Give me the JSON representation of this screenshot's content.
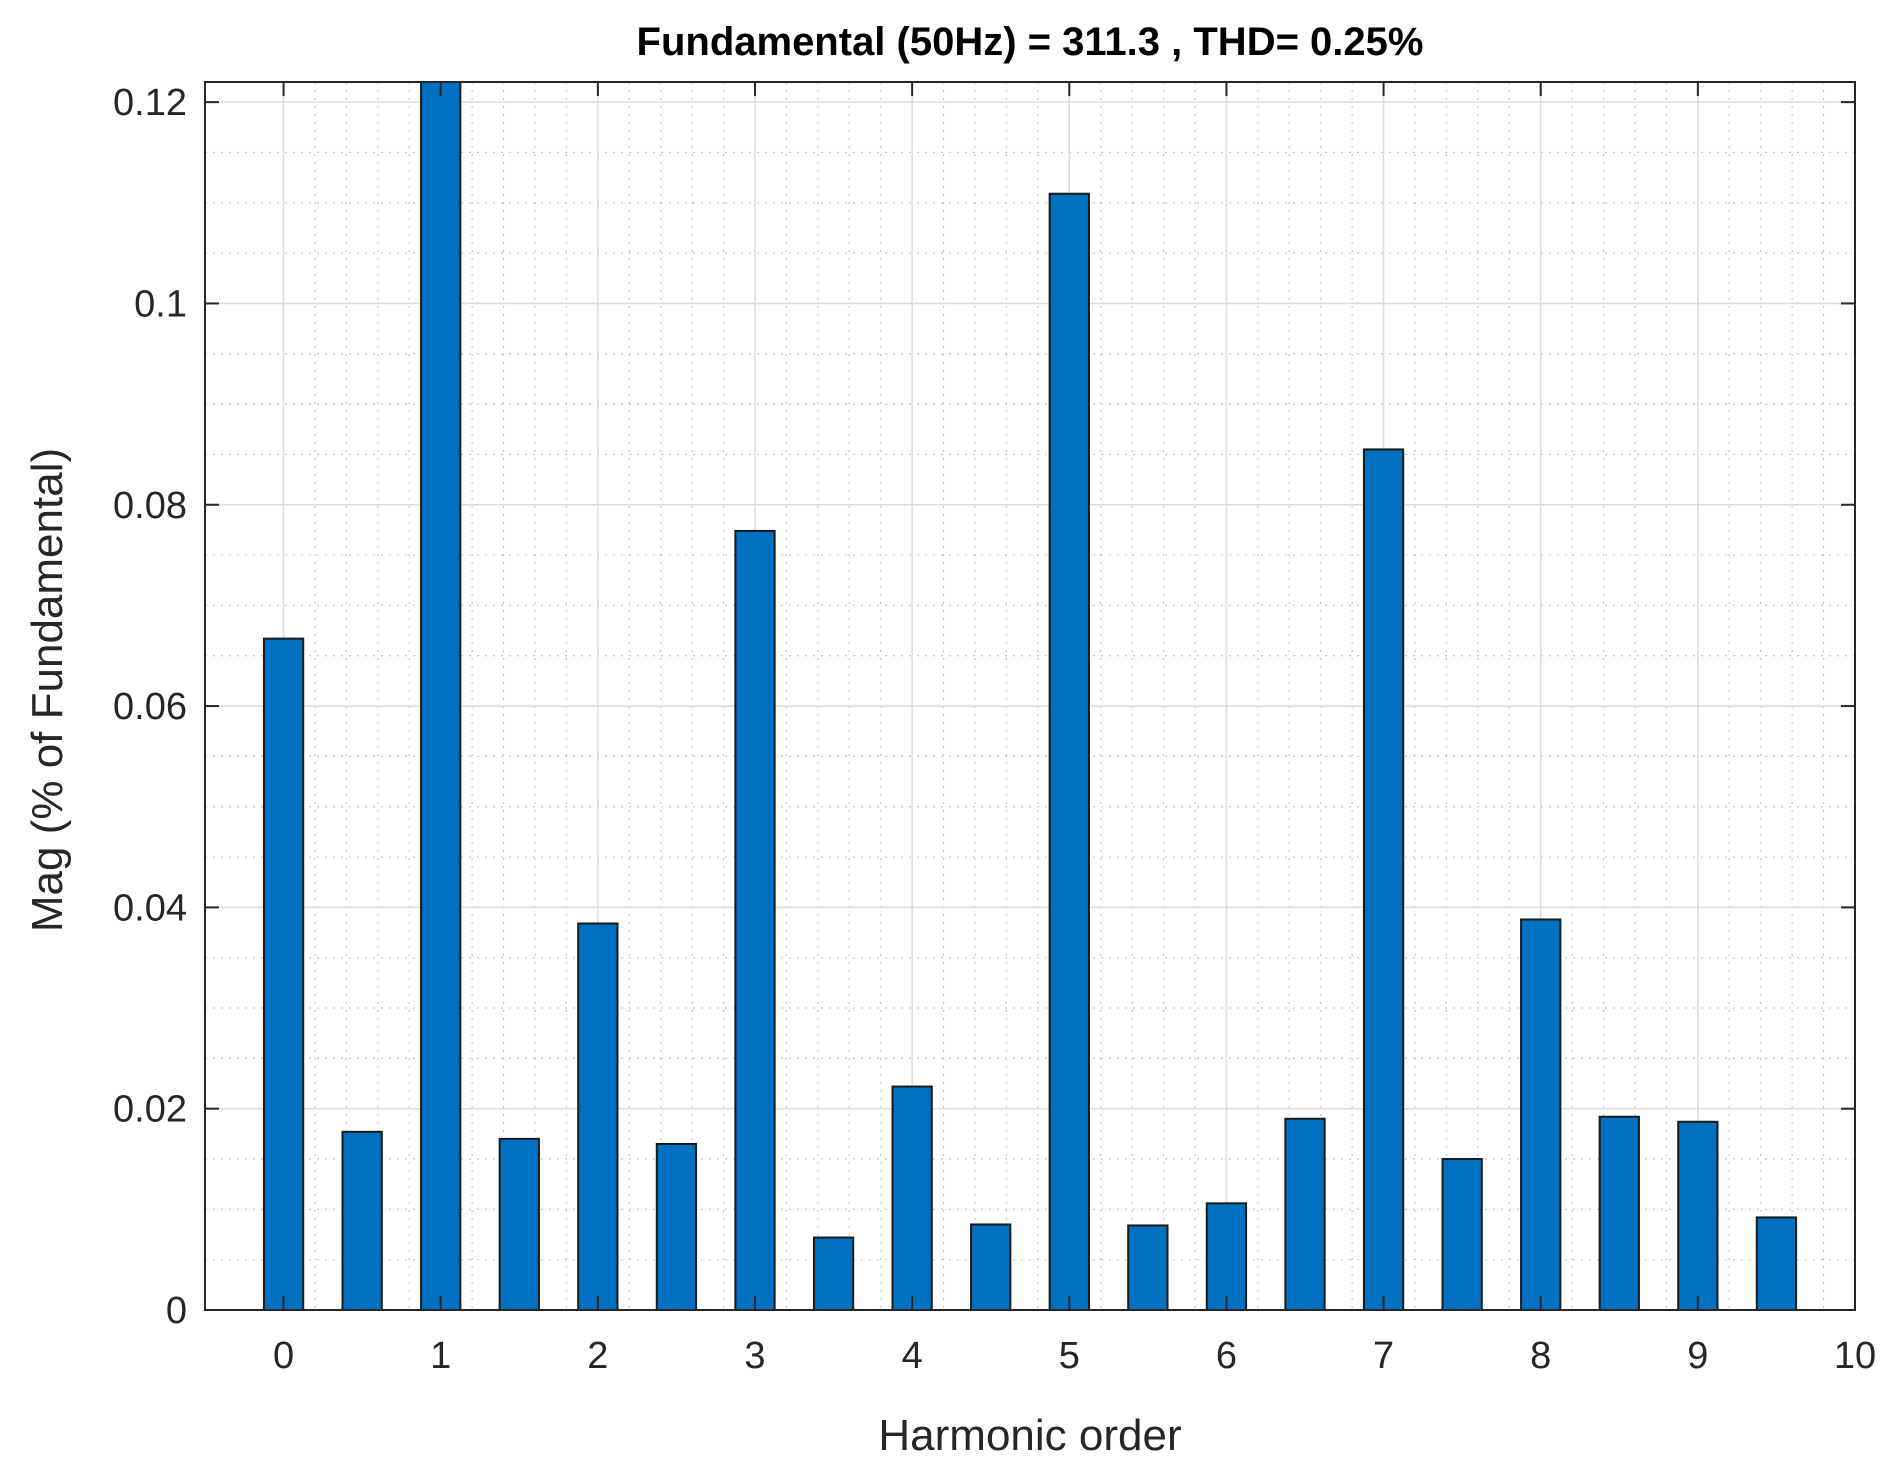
{
  "chart_data": {
    "type": "bar",
    "title": "Fundamental (50Hz) = 311.3 , THD= 0.25%",
    "xlabel": "Harmonic order",
    "ylabel": "Mag (% of Fundamental)",
    "xlim": [
      -0.5,
      10
    ],
    "ylim": [
      0,
      0.122
    ],
    "xticks": [
      0,
      1,
      2,
      3,
      4,
      5,
      6,
      7,
      8,
      9,
      10
    ],
    "xtick_labels": [
      "0",
      "1",
      "2",
      "3",
      "4",
      "5",
      "6",
      "7",
      "8",
      "9",
      "10"
    ],
    "yticks": [
      0,
      0.02,
      0.04,
      0.06,
      0.08,
      0.1,
      0.12
    ],
    "ytick_labels": [
      "0",
      "0.02",
      "0.04",
      "0.06",
      "0.08",
      "0.1",
      "0.12"
    ],
    "grid": true,
    "minor_grid": true,
    "bar_color": "#0070c0",
    "x": [
      0,
      0.5,
      1,
      1.5,
      2,
      2.5,
      3,
      3.5,
      4,
      4.5,
      5,
      5.5,
      6,
      6.5,
      7,
      7.5,
      8,
      8.5,
      9,
      9.5
    ],
    "values": [
      0.0667,
      0.0177,
      0.125,
      0.017,
      0.0384,
      0.0165,
      0.0774,
      0.0072,
      0.0222,
      0.0085,
      0.1109,
      0.0084,
      0.0106,
      0.019,
      0.0855,
      0.015,
      0.0388,
      0.0192,
      0.0187,
      0.0092
    ]
  }
}
